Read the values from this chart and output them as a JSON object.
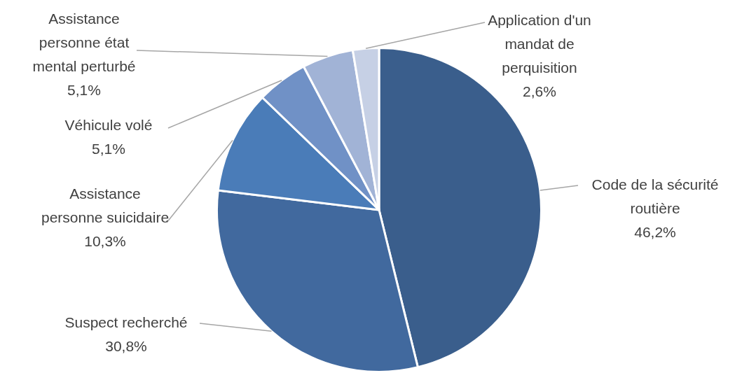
{
  "chart_data": {
    "type": "pie",
    "categories": [
      "Code de la sécurité routière",
      "Suspect recherché",
      "Assistance personne suicidaire",
      "Véhicule volé",
      "Assistance personne état mental perturbé",
      "Application d'un mandat de perquisition"
    ],
    "values": [
      46.2,
      30.8,
      10.3,
      5.1,
      5.1,
      2.6
    ],
    "value_labels": [
      "46,2%",
      "30,8%",
      "10,3%",
      "5,1%",
      "5,1%",
      "2,6%"
    ],
    "colors": [
      "#3a5e8c",
      "#41699e",
      "#4a7cb8",
      "#7091c6",
      "#a1b3d6",
      "#c6d0e5"
    ]
  }
}
